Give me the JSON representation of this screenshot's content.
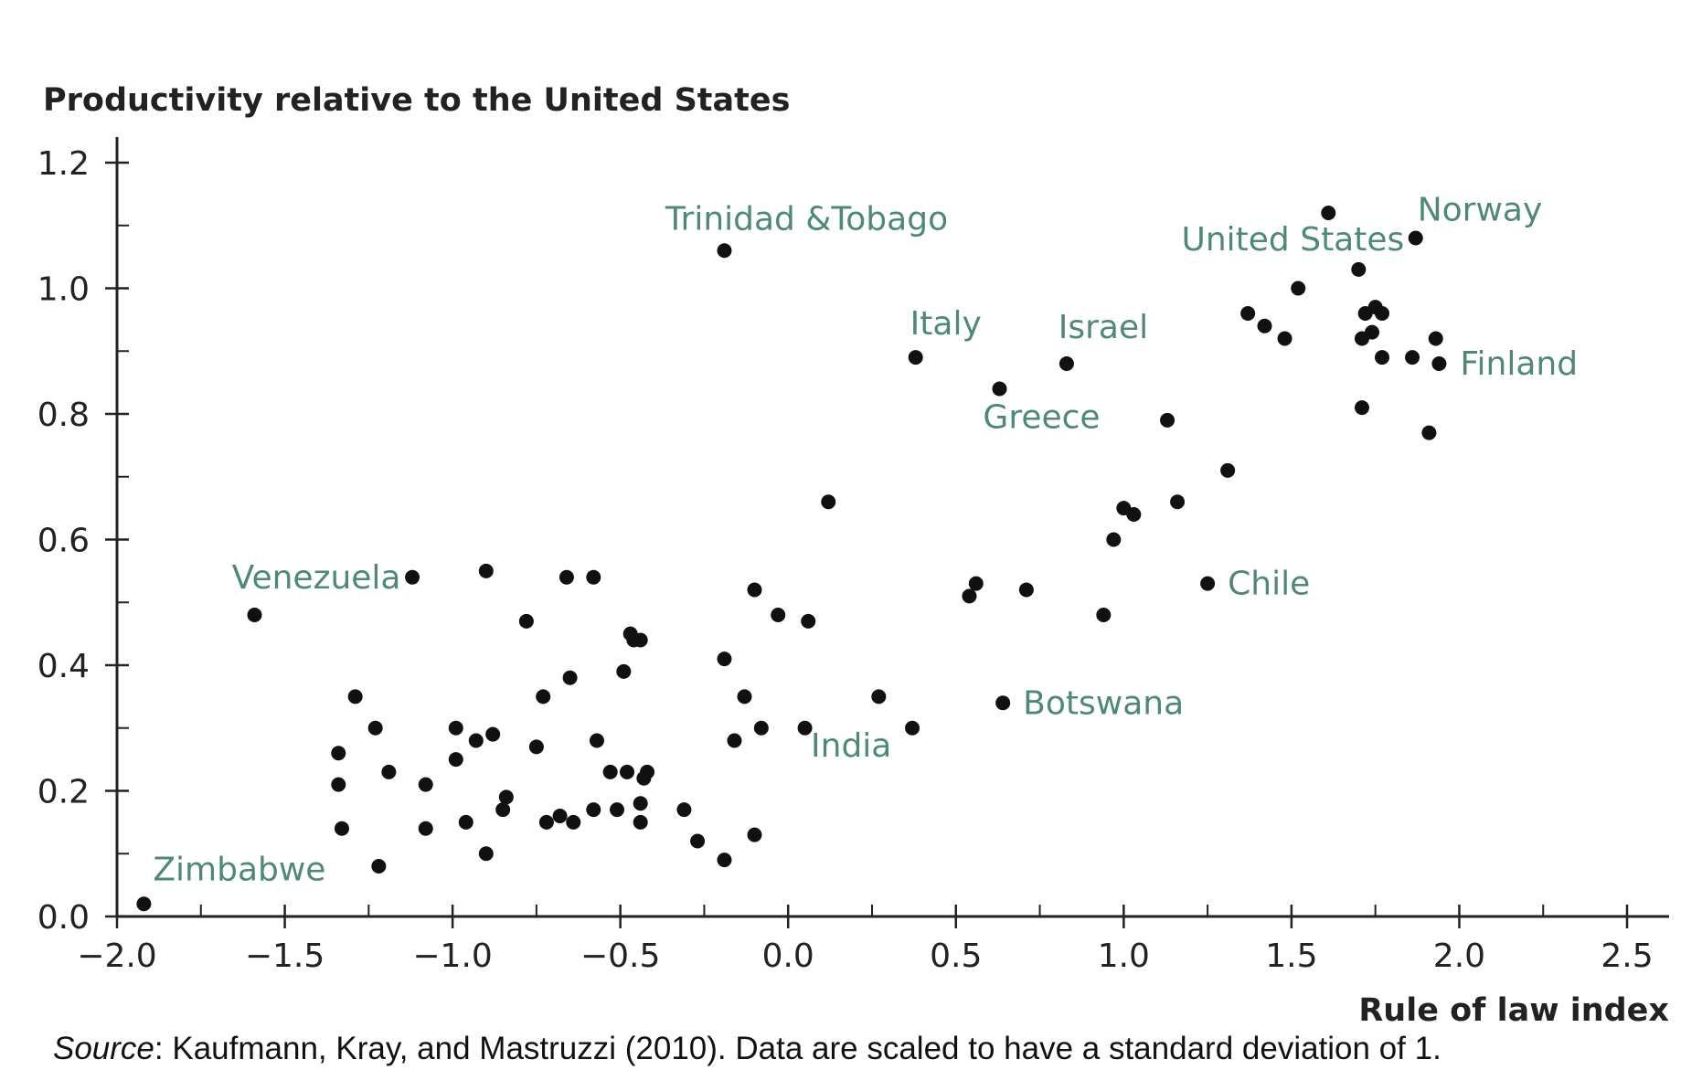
{
  "chart_data": {
    "type": "scatter",
    "title": "",
    "ylabel": "Productivity relative to the United States",
    "xlabel": "Rule of law index",
    "xlim": [
      -2.0,
      2.5
    ],
    "ylim": [
      0.0,
      1.2
    ],
    "x_ticks": [
      "−2.0",
      "−1.5",
      "−1.0",
      "−0.5",
      "0.0",
      "0.5",
      "1.0",
      "1.5",
      "2.0",
      "2.5"
    ],
    "x_tick_values": [
      -2.0,
      -1.5,
      -1.0,
      -0.5,
      0.0,
      0.5,
      1.0,
      1.5,
      2.0,
      2.5
    ],
    "y_ticks": [
      "0.0",
      "0.2",
      "0.4",
      "0.6",
      "0.8",
      "1.0",
      "1.2"
    ],
    "y_tick_values": [
      0.0,
      0.2,
      0.4,
      0.6,
      0.8,
      1.0,
      1.2
    ],
    "grid": false,
    "point_color": "#111111",
    "label_color": "#4e8a73",
    "points": [
      {
        "x": -1.92,
        "y": 0.02
      },
      {
        "x": -1.59,
        "y": 0.48
      },
      {
        "x": -1.12,
        "y": 0.54
      },
      {
        "x": -1.29,
        "y": 0.35
      },
      {
        "x": -1.23,
        "y": 0.3
      },
      {
        "x": -1.34,
        "y": 0.26
      },
      {
        "x": -1.34,
        "y": 0.21
      },
      {
        "x": -1.33,
        "y": 0.14
      },
      {
        "x": -1.19,
        "y": 0.23
      },
      {
        "x": -1.22,
        "y": 0.08
      },
      {
        "x": -1.08,
        "y": 0.21
      },
      {
        "x": -1.08,
        "y": 0.14
      },
      {
        "x": -0.99,
        "y": 0.3
      },
      {
        "x": -0.99,
        "y": 0.25
      },
      {
        "x": -0.96,
        "y": 0.15
      },
      {
        "x": -0.93,
        "y": 0.28
      },
      {
        "x": -0.88,
        "y": 0.29
      },
      {
        "x": -0.9,
        "y": 0.55
      },
      {
        "x": -0.9,
        "y": 0.1
      },
      {
        "x": -0.85,
        "y": 0.17
      },
      {
        "x": -0.84,
        "y": 0.19
      },
      {
        "x": -0.78,
        "y": 0.47
      },
      {
        "x": -0.75,
        "y": 0.27
      },
      {
        "x": -0.73,
        "y": 0.35
      },
      {
        "x": -0.72,
        "y": 0.15
      },
      {
        "x": -0.68,
        "y": 0.16
      },
      {
        "x": -0.66,
        "y": 0.54
      },
      {
        "x": -0.65,
        "y": 0.38
      },
      {
        "x": -0.64,
        "y": 0.15
      },
      {
        "x": -0.58,
        "y": 0.54
      },
      {
        "x": -0.58,
        "y": 0.17
      },
      {
        "x": -0.57,
        "y": 0.28
      },
      {
        "x": -0.53,
        "y": 0.23
      },
      {
        "x": -0.51,
        "y": 0.17
      },
      {
        "x": -0.49,
        "y": 0.39
      },
      {
        "x": -0.48,
        "y": 0.23
      },
      {
        "x": -0.47,
        "y": 0.45
      },
      {
        "x": -0.46,
        "y": 0.44
      },
      {
        "x": -0.44,
        "y": 0.44
      },
      {
        "x": -0.44,
        "y": 0.18
      },
      {
        "x": -0.44,
        "y": 0.15
      },
      {
        "x": -0.43,
        "y": 0.22
      },
      {
        "x": -0.42,
        "y": 0.23
      },
      {
        "x": -0.31,
        "y": 0.17
      },
      {
        "x": -0.27,
        "y": 0.12
      },
      {
        "x": -0.19,
        "y": 1.06
      },
      {
        "x": -0.19,
        "y": 0.41
      },
      {
        "x": -0.19,
        "y": 0.09
      },
      {
        "x": -0.16,
        "y": 0.28
      },
      {
        "x": -0.13,
        "y": 0.35
      },
      {
        "x": -0.1,
        "y": 0.52
      },
      {
        "x": -0.1,
        "y": 0.13
      },
      {
        "x": -0.08,
        "y": 0.3
      },
      {
        "x": -0.03,
        "y": 0.48
      },
      {
        "x": 0.05,
        "y": 0.3
      },
      {
        "x": 0.06,
        "y": 0.47
      },
      {
        "x": 0.12,
        "y": 0.66
      },
      {
        "x": 0.27,
        "y": 0.35
      },
      {
        "x": 0.37,
        "y": 0.3
      },
      {
        "x": 0.38,
        "y": 0.89
      },
      {
        "x": 0.54,
        "y": 0.51
      },
      {
        "x": 0.56,
        "y": 0.53
      },
      {
        "x": 0.63,
        "y": 0.84
      },
      {
        "x": 0.64,
        "y": 0.34
      },
      {
        "x": 0.71,
        "y": 0.52
      },
      {
        "x": 0.83,
        "y": 0.88
      },
      {
        "x": 0.94,
        "y": 0.48
      },
      {
        "x": 0.97,
        "y": 0.6
      },
      {
        "x": 1.0,
        "y": 0.65
      },
      {
        "x": 1.03,
        "y": 0.64
      },
      {
        "x": 1.13,
        "y": 0.79
      },
      {
        "x": 1.16,
        "y": 0.66
      },
      {
        "x": 1.25,
        "y": 0.53
      },
      {
        "x": 1.31,
        "y": 0.71
      },
      {
        "x": 1.37,
        "y": 0.96
      },
      {
        "x": 1.42,
        "y": 0.94
      },
      {
        "x": 1.48,
        "y": 0.92
      },
      {
        "x": 1.52,
        "y": 1.0
      },
      {
        "x": 1.61,
        "y": 1.12
      },
      {
        "x": 1.7,
        "y": 1.03
      },
      {
        "x": 1.71,
        "y": 0.92
      },
      {
        "x": 1.71,
        "y": 0.81
      },
      {
        "x": 1.72,
        "y": 0.96
      },
      {
        "x": 1.74,
        "y": 0.93
      },
      {
        "x": 1.75,
        "y": 0.97
      },
      {
        "x": 1.77,
        "y": 0.96
      },
      {
        "x": 1.77,
        "y": 0.89
      },
      {
        "x": 1.86,
        "y": 0.89
      },
      {
        "x": 1.87,
        "y": 1.08
      },
      {
        "x": 1.91,
        "y": 0.77
      },
      {
        "x": 1.93,
        "y": 0.92
      },
      {
        "x": 1.94,
        "y": 0.88
      }
    ],
    "annotations": [
      {
        "text": "Zimbabwe",
        "x": -1.92,
        "y": 0.02
      },
      {
        "text": "Venezuela",
        "x": -1.59,
        "y": 0.48
      },
      {
        "text": "Trinidad &Tobago",
        "x": -0.19,
        "y": 1.06
      },
      {
        "text": "Italy",
        "x": 0.38,
        "y": 0.89
      },
      {
        "text": "Israel",
        "x": 0.83,
        "y": 0.88
      },
      {
        "text": "Greece",
        "x": 0.63,
        "y": 0.84
      },
      {
        "text": "India",
        "x": -0.03,
        "y": 0.48
      },
      {
        "text": "Botswana",
        "x": 0.64,
        "y": 0.34
      },
      {
        "text": "Chile",
        "x": 1.25,
        "y": 0.53
      },
      {
        "text": "United States",
        "x": 1.61,
        "y": 1.12
      },
      {
        "text": "Norway",
        "x": 1.87,
        "y": 1.08
      },
      {
        "text": "Finland",
        "x": 1.94,
        "y": 0.88
      }
    ]
  },
  "source": {
    "label": "Source",
    "text": ": Kaufmann, Kray, and Mastruzzi (2010). Data are scaled to have a standard deviation of 1."
  }
}
